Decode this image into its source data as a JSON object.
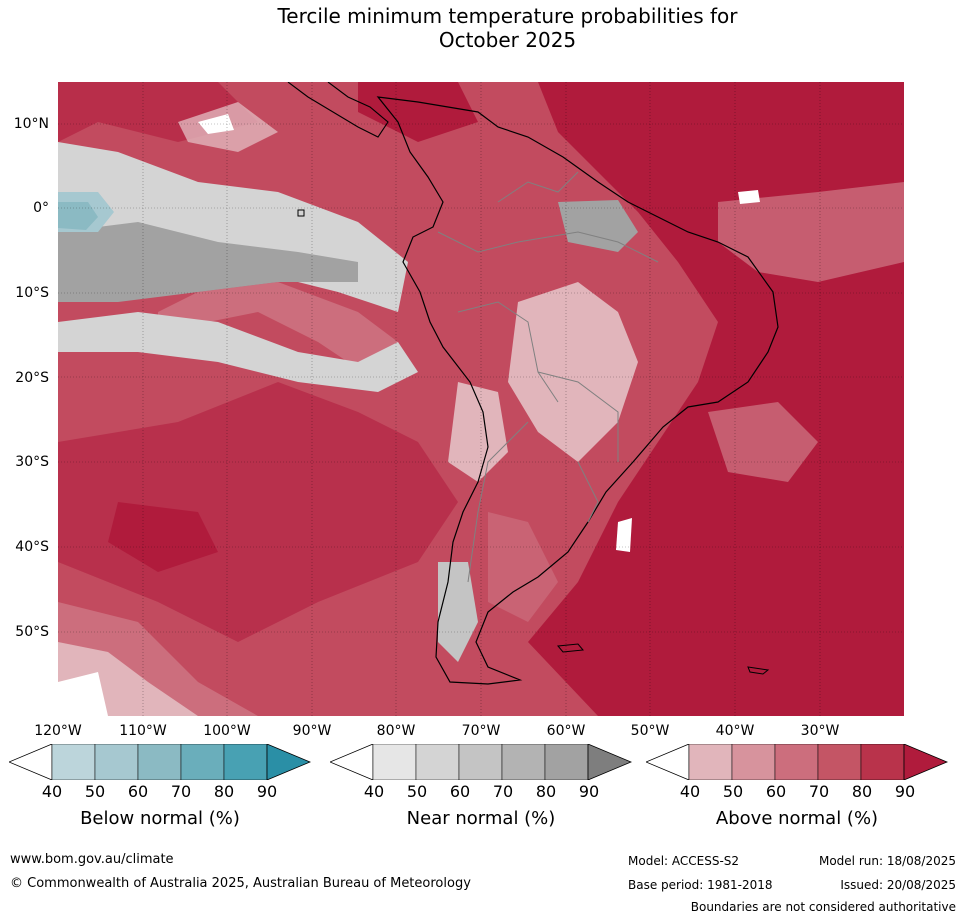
{
  "title_line1": "Tercile minimum temperature probabilities for",
  "title_line2": "October 2025",
  "lat_labels": [
    "10°N",
    "0°",
    "10°S",
    "20°S",
    "30°S",
    "40°S",
    "50°S"
  ],
  "lon_labels": [
    "120°W",
    "110°W",
    "100°W",
    "90°W",
    "80°W",
    "70°W",
    "60°W",
    "50°W",
    "40°W",
    "30°W"
  ],
  "legend": {
    "below": {
      "label": "Below normal (%)",
      "ticks": [
        "40",
        "50",
        "60",
        "70",
        "80",
        "90"
      ],
      "colors": [
        "#ffffff",
        "#bcd5db",
        "#a6c8d0",
        "#8bbac3",
        "#6aaebb",
        "#48a1b3",
        "#2a8fa6"
      ]
    },
    "near": {
      "label": "Near normal (%)",
      "ticks": [
        "40",
        "50",
        "60",
        "70",
        "80",
        "90"
      ],
      "colors": [
        "#ffffff",
        "#e6e6e6",
        "#d4d4d4",
        "#c4c4c4",
        "#b3b3b3",
        "#a2a2a2",
        "#7e7e7e"
      ]
    },
    "above": {
      "label": "Above normal (%)",
      "ticks": [
        "40",
        "50",
        "60",
        "70",
        "80",
        "90"
      ],
      "colors": [
        "#ffffff",
        "#e1b5bb",
        "#d7939d",
        "#cc6e7d",
        "#c45565",
        "#b9334b",
        "#b01b3c"
      ]
    }
  },
  "footer": {
    "website": "www.bom.gov.au/climate",
    "copyright": "© Commonwealth of Australia 2025, Australian Bureau of Meteorology",
    "model": "Model: ACCESS-S2",
    "model_run": "Model run: 18/08/2025",
    "base_period": "Base period: 1981-2018",
    "issued": "Issued: 20/08/2025",
    "disclaimer": "Boundaries are not considered authoritative"
  }
}
